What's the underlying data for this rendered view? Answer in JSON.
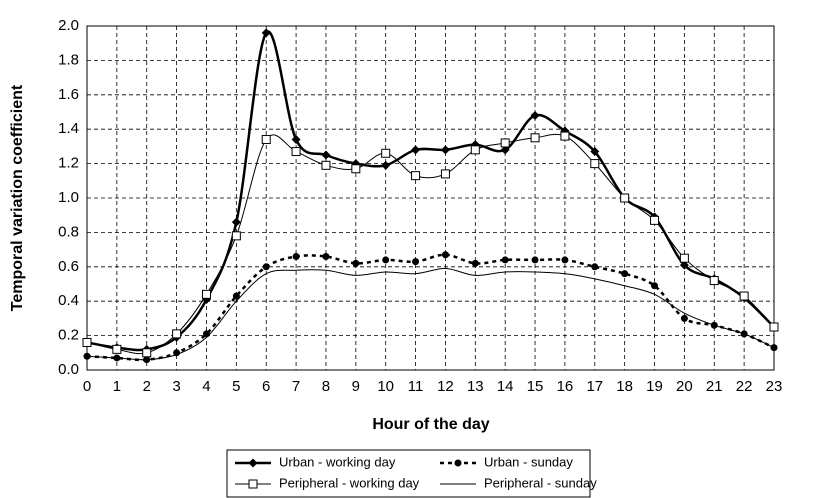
{
  "chart_data": {
    "type": "line",
    "x_label": "Hour of the day",
    "y_label": "Temporal variation coefficient",
    "x": [
      0,
      1,
      2,
      3,
      4,
      5,
      6,
      7,
      8,
      9,
      10,
      11,
      12,
      13,
      14,
      15,
      16,
      17,
      18,
      19,
      20,
      21,
      22,
      23
    ],
    "xlim": [
      0,
      23
    ],
    "xticks": [
      0,
      1,
      2,
      3,
      4,
      5,
      6,
      7,
      8,
      9,
      10,
      11,
      12,
      13,
      14,
      15,
      16,
      17,
      18,
      19,
      20,
      21,
      22,
      23
    ],
    "ylim": [
      0,
      2
    ],
    "yticks": [
      {
        "value": 0,
        "label": "0.0"
      },
      0.2,
      0.4,
      0.6,
      0.8,
      {
        "value": 1,
        "label": "1.0"
      },
      1.2,
      1.4,
      1.6,
      1.8,
      {
        "value": 2,
        "label": "2.0"
      }
    ],
    "grid": true,
    "legend": "bottom",
    "series": [
      {
        "name": "Urban - working day",
        "color": "#000000",
        "line_width": 2.5,
        "dash": false,
        "marker": "diamond",
        "values": [
          0.16,
          0.13,
          0.12,
          0.19,
          0.41,
          0.86,
          1.96,
          1.34,
          1.25,
          1.2,
          1.19,
          1.28,
          1.28,
          1.31,
          1.28,
          1.48,
          1.39,
          1.27,
          1.0,
          0.89,
          0.61,
          0.53,
          0.42,
          0.25
        ]
      },
      {
        "name": "Urban - sunday",
        "color": "#000000",
        "line_width": 2.5,
        "dash": true,
        "marker": "circle",
        "values": [
          0.08,
          0.07,
          0.06,
          0.1,
          0.21,
          0.43,
          0.6,
          0.66,
          0.66,
          0.62,
          0.64,
          0.63,
          0.67,
          0.62,
          0.64,
          0.64,
          0.64,
          0.6,
          0.56,
          0.49,
          0.3,
          0.26,
          0.21,
          0.13
        ]
      },
      {
        "name": "Peripheral - working day",
        "color": "#000000",
        "line_width": 1,
        "dash": false,
        "marker": "square",
        "values": [
          0.16,
          0.12,
          0.1,
          0.21,
          0.44,
          0.78,
          1.34,
          1.27,
          1.19,
          1.17,
          1.26,
          1.13,
          1.14,
          1.28,
          1.32,
          1.35,
          1.36,
          1.2,
          1.0,
          0.87,
          0.65,
          0.52,
          0.43,
          0.25
        ]
      },
      {
        "name": "Peripheral - sunday",
        "color": "#000000",
        "line_width": 1,
        "dash": false,
        "marker": "none",
        "values": [
          0.08,
          0.07,
          0.06,
          0.09,
          0.19,
          0.4,
          0.56,
          0.58,
          0.58,
          0.55,
          0.57,
          0.56,
          0.59,
          0.55,
          0.57,
          0.57,
          0.56,
          0.53,
          0.49,
          0.44,
          0.33,
          0.26,
          0.21,
          0.13
        ]
      }
    ]
  }
}
